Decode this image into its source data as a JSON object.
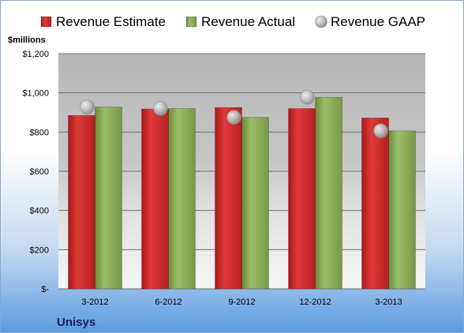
{
  "chart_data": {
    "type": "bar",
    "unit_label": "$millions",
    "company": "Unisys",
    "categories": [
      "3-2012",
      "6-2012",
      "9-2012",
      "12-2012",
      "3-2013"
    ],
    "series": [
      {
        "name": "Revenue Estimate",
        "kind": "bar",
        "color": "#d42a2a",
        "values": [
          885,
          918,
          925,
          920,
          872
        ]
      },
      {
        "name": "Revenue Actual",
        "kind": "bar",
        "color": "#8cad5a",
        "values": [
          928,
          920,
          875,
          978,
          806
        ]
      },
      {
        "name": "Revenue GAAP",
        "kind": "marker",
        "color": "#b8b8b8",
        "values": [
          928,
          920,
          875,
          978,
          806
        ]
      }
    ],
    "ylim": [
      0,
      1200
    ],
    "yticks": [
      0,
      200,
      400,
      600,
      800,
      1000,
      1200
    ],
    "ytick_labels": [
      "$-",
      "$200",
      "$400",
      "$600",
      "$800",
      "$1,000",
      "$1,200"
    ],
    "grid": true,
    "legend_position": "top"
  }
}
